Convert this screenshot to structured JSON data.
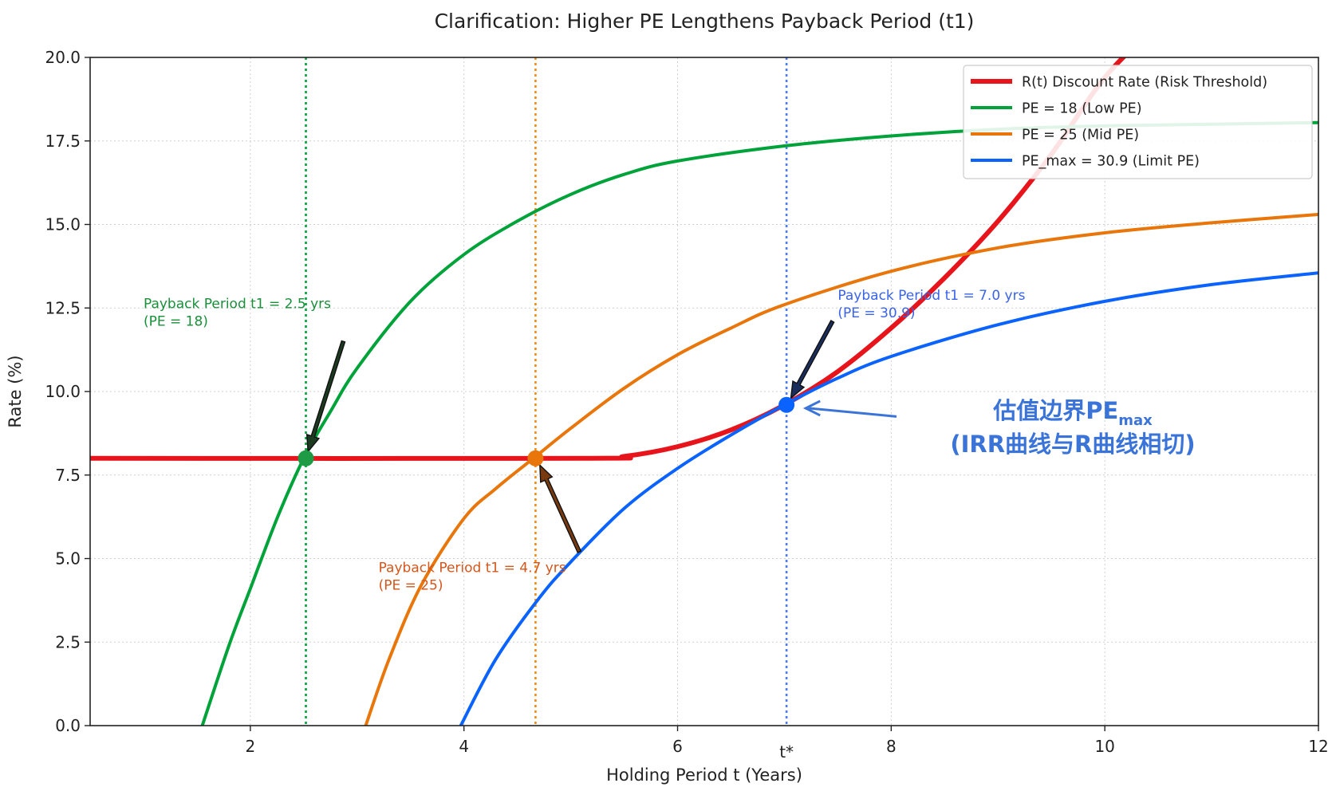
{
  "chart_data": {
    "type": "line",
    "title": "Clarification: Higher PE Lengthens Payback Period (t1)",
    "xlabel": "Holding Period t (Years)",
    "ylabel": "Rate (%)",
    "xlim": [
      0.5,
      12
    ],
    "ylim": [
      0,
      20
    ],
    "xticks": [
      "2",
      "4",
      "6",
      "8",
      "10",
      "12"
    ],
    "yticks": [
      "0.0",
      "2.5",
      "5.0",
      "7.5",
      "10.0",
      "12.5",
      "15.0",
      "17.5",
      "20.0"
    ],
    "grid": true,
    "legend_position": "top-right",
    "series": [
      {
        "name": "R(t) Discount Rate (Risk Threshold)",
        "color": "#e8141c",
        "x": [
          0.5,
          5.1,
          5.5,
          6.0,
          6.5,
          7.0,
          7.5,
          8.0,
          8.5,
          9.0,
          9.5,
          10.0,
          10.5
        ],
        "y": [
          8.0,
          8.0,
          8.06,
          8.35,
          8.85,
          9.6,
          10.6,
          11.9,
          13.4,
          15.1,
          17.1,
          19.4,
          21.0
        ]
      },
      {
        "name": "PE = 18 (Low PE)",
        "color": "#00a33a",
        "x": [
          1.55,
          1.8,
          2.0,
          2.25,
          2.5,
          2.75,
          3.0,
          3.5,
          4.0,
          4.5,
          5.0,
          5.5,
          6.0,
          7.0,
          8.0,
          9.0,
          10.0,
          11.0,
          12.0
        ],
        "y": [
          0.0,
          2.4,
          4.1,
          6.2,
          8.0,
          9.4,
          10.7,
          12.7,
          14.1,
          15.1,
          15.9,
          16.5,
          16.9,
          17.35,
          17.65,
          17.85,
          17.95,
          18.0,
          18.05
        ]
      },
      {
        "name": "PE = 25 (Mid PE)",
        "color": "#e8760a",
        "x": [
          3.08,
          3.3,
          3.6,
          4.0,
          4.3,
          4.65,
          5.0,
          5.5,
          6.0,
          6.5,
          7.0,
          8.0,
          9.0,
          10.0,
          11.0,
          12.0
        ],
        "y": [
          0.0,
          2.0,
          4.2,
          6.2,
          7.1,
          8.0,
          8.9,
          10.1,
          11.1,
          11.9,
          12.6,
          13.6,
          14.3,
          14.75,
          15.05,
          15.3
        ]
      },
      {
        "name": "PE_max = 30.9 (Limit PE)",
        "color": "#0b63ff",
        "x": [
          3.97,
          4.3,
          4.7,
          5.0,
          5.5,
          6.0,
          6.5,
          7.0,
          7.5,
          8.0,
          9.0,
          10.0,
          11.0,
          12.0
        ],
        "y": [
          0.0,
          2.0,
          3.8,
          4.9,
          6.5,
          7.7,
          8.7,
          9.6,
          10.4,
          11.05,
          12.0,
          12.7,
          13.2,
          13.55
        ]
      }
    ],
    "vlines": [
      {
        "x": 2.52,
        "color": "#00a33a"
      },
      {
        "x": 4.67,
        "color": "#f08a1c"
      },
      {
        "x": 7.02,
        "color": "#4b7bff"
      }
    ],
    "points": [
      {
        "x": 2.52,
        "y": 8.0,
        "color": "#1f9a45"
      },
      {
        "x": 4.67,
        "y": 8.0,
        "color": "#e8760a"
      },
      {
        "x": 7.02,
        "y": 9.6,
        "color": "#0b63ff"
      }
    ],
    "annotations": [
      {
        "line1": "Payback Period t1 = 2.5 yrs",
        "line2": "(PE = 18)",
        "color": "#1a8f3a",
        "x": 1.0,
        "y": 12.5,
        "arrow_from": [
          2.87,
          11.5
        ],
        "arrow_to": [
          2.54,
          8.2
        ]
      },
      {
        "line1": "Payback Period t1 = 4.7 yrs",
        "line2": "(PE = 25)",
        "color": "#d4561c",
        "x": 3.2,
        "y": 4.6,
        "arrow_from": [
          5.08,
          5.2
        ],
        "arrow_to": [
          4.71,
          7.8
        ]
      },
      {
        "line1": "Payback Period t1 = 7.0 yrs",
        "line2": "(PE = 30.9)",
        "color": "#3a63e6",
        "x": 7.5,
        "y": 12.75,
        "arrow_from": [
          7.45,
          12.1
        ],
        "arrow_to": [
          7.06,
          9.8
        ]
      }
    ],
    "tstar_label": "t*",
    "tstar_color": "#3a63c8",
    "pe_max": {
      "main": "估值边界PE",
      "sub": "max",
      "line2": "(IRR曲线与R曲线相切)",
      "color": "#3b74d8",
      "x": 9.7,
      "y": 9.0,
      "arrow_from": [
        8.05,
        9.25
      ],
      "arrow_to": [
        7.2,
        9.5
      ]
    }
  }
}
